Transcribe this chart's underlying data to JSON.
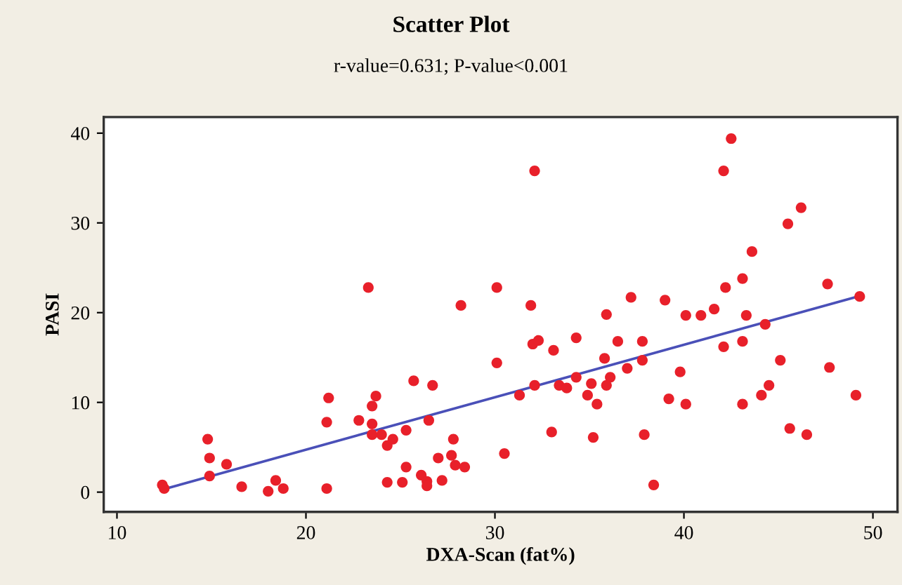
{
  "chart_data": {
    "type": "scatter",
    "title": "Scatter Plot",
    "subtitle": "r-value=0.631; P-value<0.001",
    "xlabel": "DXA-Scan (fat%)",
    "ylabel": "PASI",
    "xlim": [
      9.3,
      51.3
    ],
    "ylim": [
      -2.2,
      41.8
    ],
    "xticks": [
      10,
      20,
      30,
      40,
      50
    ],
    "yticks": [
      0,
      10,
      20,
      30,
      40
    ],
    "grid": false,
    "legend": false,
    "series": [
      {
        "color": "#e8202a",
        "marker": "circle",
        "x": [
          12.4,
          12.5,
          14.8,
          14.9,
          14.9,
          15.8,
          16.6,
          18.0,
          18.4,
          18.8,
          21.1,
          21.1,
          21.2,
          23.3,
          22.8,
          23.5,
          23.7,
          23.5,
          23.5,
          24.0,
          24.3,
          24.6,
          24.3,
          25.1,
          25.3,
          25.3,
          25.7,
          26.7,
          26.5,
          26.1,
          26.4,
          26.4,
          27.2,
          27.0,
          27.8,
          27.7,
          27.9,
          28.4,
          28.2,
          30.1,
          30.1,
          30.5,
          31.3,
          32.1,
          31.9,
          32.0,
          32.3,
          32.1,
          33.1,
          33.0,
          33.4,
          33.8,
          34.3,
          34.3,
          34.9,
          35.1,
          35.4,
          35.2,
          35.8,
          35.9,
          36.1,
          35.9,
          36.5,
          37.0,
          37.2,
          37.8,
          37.8,
          37.9,
          38.4,
          39.0,
          39.2,
          39.8,
          40.1,
          40.1,
          40.9,
          41.6,
          42.1,
          42.5,
          42.2,
          42.1,
          43.1,
          43.6,
          43.3,
          43.1,
          43.1,
          44.3,
          45.1,
          44.1,
          44.5,
          45.5,
          46.2,
          45.6,
          46.5,
          47.6,
          47.7,
          49.1,
          49.3
        ],
        "values": [
          0.8,
          0.4,
          5.9,
          3.8,
          1.8,
          3.1,
          0.6,
          0.1,
          1.3,
          0.4,
          0.4,
          7.8,
          10.5,
          22.8,
          8.0,
          9.6,
          10.7,
          7.6,
          6.4,
          6.4,
          5.2,
          5.9,
          1.1,
          1.1,
          6.9,
          2.8,
          12.4,
          11.9,
          8.0,
          1.9,
          1.2,
          0.7,
          1.3,
          3.8,
          5.9,
          4.1,
          3.0,
          2.8,
          20.8,
          22.8,
          14.4,
          4.3,
          10.8,
          35.8,
          20.8,
          16.5,
          16.9,
          11.9,
          15.8,
          6.7,
          11.9,
          11.6,
          17.2,
          12.8,
          10.8,
          12.1,
          9.8,
          6.1,
          14.9,
          19.8,
          12.8,
          11.9,
          16.8,
          13.8,
          21.7,
          16.8,
          14.7,
          6.4,
          0.8,
          21.4,
          10.4,
          13.4,
          19.7,
          9.8,
          19.7,
          20.4,
          35.8,
          39.4,
          22.8,
          16.2,
          23.8,
          26.8,
          19.7,
          16.8,
          9.8,
          18.7,
          14.7,
          10.8,
          11.9,
          29.9,
          31.7,
          7.1,
          6.4,
          23.2,
          13.9,
          10.8,
          21.8
        ]
      },
      {
        "type": "line",
        "color": "#4a50b8",
        "marker": "none",
        "line_style": "solid",
        "x": [
          12.6,
          49.2
        ],
        "values": [
          0.4,
          21.8
        ]
      }
    ]
  }
}
